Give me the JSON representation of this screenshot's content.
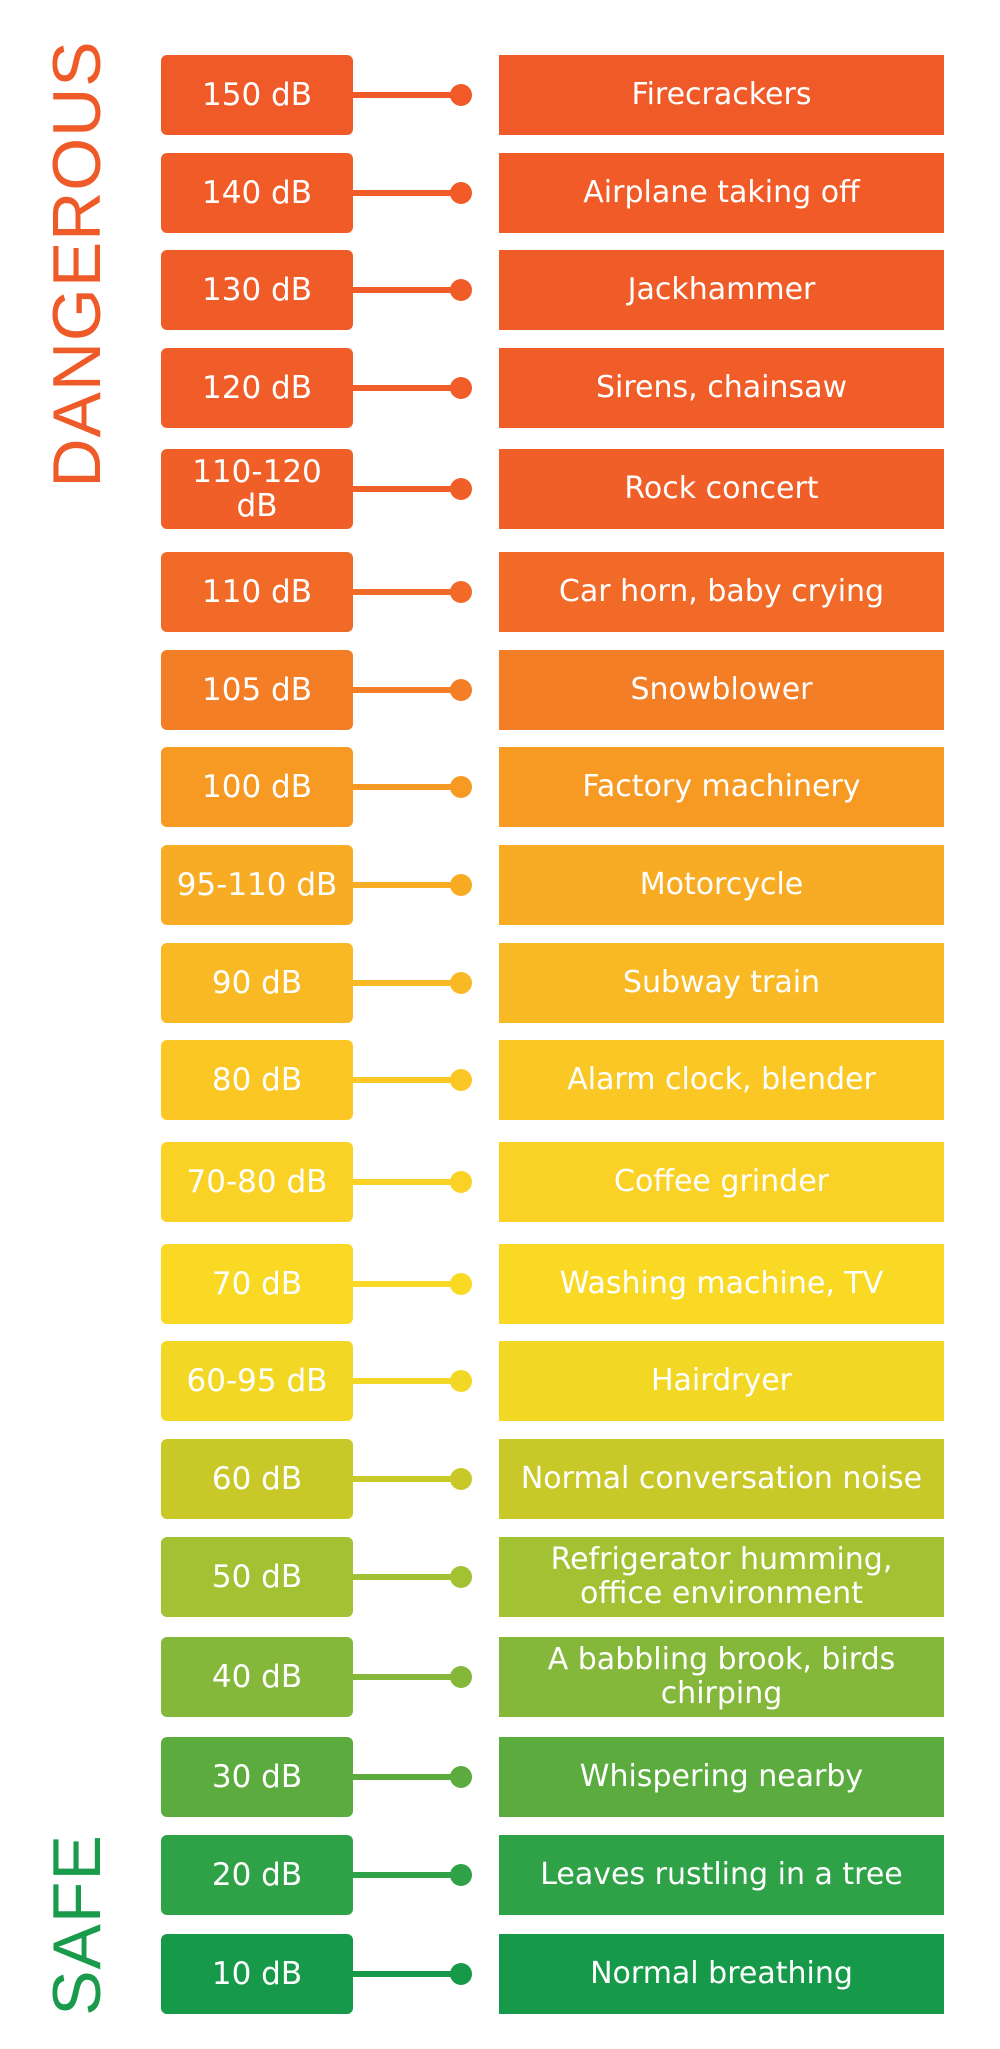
{
  "labels": {
    "dangerous": "DANGEROUS",
    "safe": "SAFE",
    "dangerous_color": "#EF5A29",
    "safe_color": "#1A9A4B"
  },
  "levels": [
    {
      "db": "150 dB",
      "source": "Firecrackers",
      "color": "#F05A28"
    },
    {
      "db": "140 dB",
      "source": "Airplane taking off",
      "color": "#F05B28"
    },
    {
      "db": "130 dB",
      "source": "Jackhammer",
      "color": "#F05C28"
    },
    {
      "db": "120 dB",
      "source": "Sirens, chainsaw",
      "color": "#F05D28"
    },
    {
      "db": "110-120 dB",
      "source": "Rock concert",
      "color": "#F05F28"
    },
    {
      "db": "110 dB",
      "source": "Car horn, baby crying",
      "color": "#F16A27"
    },
    {
      "db": "105 dB",
      "source": "Snowblower",
      "color": "#F37E25"
    },
    {
      "db": "100 dB",
      "source": "Factory machinery",
      "color": "#F69A24"
    },
    {
      "db": "95-110 dB",
      "source": "Motorcycle",
      "color": "#F8AC24"
    },
    {
      "db": "90 dB",
      "source": "Subway train",
      "color": "#F9B924"
    },
    {
      "db": "80 dB",
      "source": "Alarm clock, blender",
      "color": "#FAC724"
    },
    {
      "db": "70-80 dB",
      "source": "Coffee grinder",
      "color": "#FAD225"
    },
    {
      "db": "70 dB",
      "source": "Washing machine, TV",
      "color": "#FAD925"
    },
    {
      "db": "60-95 dB",
      "source": "Hairdryer",
      "color": "#F3D725"
    },
    {
      "db": "60 dB",
      "source": "Normal conversation noise",
      "color": "#C8C928"
    },
    {
      "db": "50 dB",
      "source": "Refrigerator humming, office environment",
      "color": "#A2C133"
    },
    {
      "db": "40 dB",
      "source": "A babbling brook, birds chirping",
      "color": "#84B73A"
    },
    {
      "db": "30 dB",
      "source": "Whispering nearby",
      "color": "#5CAB3F"
    },
    {
      "db": "20 dB",
      "source": "Leaves rustling in a tree",
      "color": "#2FA146"
    },
    {
      "db": "10 dB",
      "source": "Normal breathing",
      "color": "#169A4A"
    }
  ]
}
